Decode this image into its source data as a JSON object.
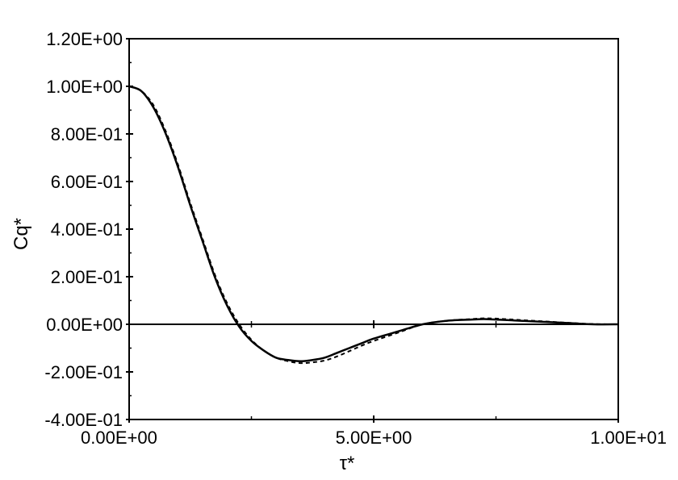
{
  "chart_data": {
    "type": "line",
    "xlabel": "τ*",
    "ylabel": "Cq*",
    "xlim": [
      0,
      10
    ],
    "ylim": [
      -0.4,
      1.2
    ],
    "x_ticks": [
      0,
      5,
      10
    ],
    "x_tick_labels": [
      "0.00E+00",
      "5.00E+00",
      "1.00E+01"
    ],
    "y_ticks": [
      -0.4,
      -0.2,
      0,
      0.2,
      0.4,
      0.6,
      0.8,
      1.0,
      1.2
    ],
    "y_tick_labels": [
      "-4.00E-01",
      "-2.00E-01",
      "0.00E+00",
      "2.00E-01",
      "4.00E-01",
      "6.00E-01",
      "8.00E-01",
      "1.00E+00",
      "1.20E+00"
    ],
    "x_minor_ticks": [
      2.5,
      7.5
    ],
    "zero_line": true,
    "grid": false,
    "legend": "none",
    "series": [
      {
        "style": "solid",
        "x": [
          0,
          0.25,
          0.5,
          0.75,
          1.0,
          1.25,
          1.5,
          1.75,
          2.0,
          2.25,
          2.5,
          2.75,
          3.0,
          3.25,
          3.5,
          3.75,
          4.0,
          4.25,
          4.5,
          4.75,
          5.0,
          5.5,
          6.0,
          6.5,
          7.0,
          7.25,
          7.5,
          8.0,
          8.5,
          9.0,
          9.5,
          10.0
        ],
        "values": [
          1.0,
          0.98,
          0.91,
          0.8,
          0.66,
          0.5,
          0.35,
          0.2,
          0.08,
          -0.01,
          -0.07,
          -0.11,
          -0.14,
          -0.15,
          -0.155,
          -0.15,
          -0.14,
          -0.12,
          -0.1,
          -0.08,
          -0.06,
          -0.03,
          0.0,
          0.015,
          0.02,
          0.022,
          0.02,
          0.015,
          0.01,
          0.005,
          0.0,
          0.0
        ]
      },
      {
        "style": "dashed",
        "x": [
          0,
          0.25,
          0.5,
          0.75,
          1.0,
          1.25,
          1.5,
          1.75,
          2.0,
          2.25,
          2.5,
          2.75,
          3.0,
          3.25,
          3.5,
          3.75,
          4.0,
          4.25,
          4.5,
          4.75,
          5.0,
          5.5,
          6.0,
          6.5,
          7.0,
          7.25,
          7.5,
          8.0,
          8.5,
          9.0,
          9.5,
          10.0
        ],
        "values": [
          1.0,
          0.98,
          0.92,
          0.81,
          0.67,
          0.51,
          0.36,
          0.21,
          0.09,
          0.0,
          -0.065,
          -0.11,
          -0.14,
          -0.155,
          -0.163,
          -0.16,
          -0.152,
          -0.135,
          -0.113,
          -0.09,
          -0.07,
          -0.035,
          0.0,
          0.015,
          0.022,
          0.025,
          0.024,
          0.018,
          0.012,
          0.006,
          0.001,
          0.0
        ]
      }
    ]
  }
}
